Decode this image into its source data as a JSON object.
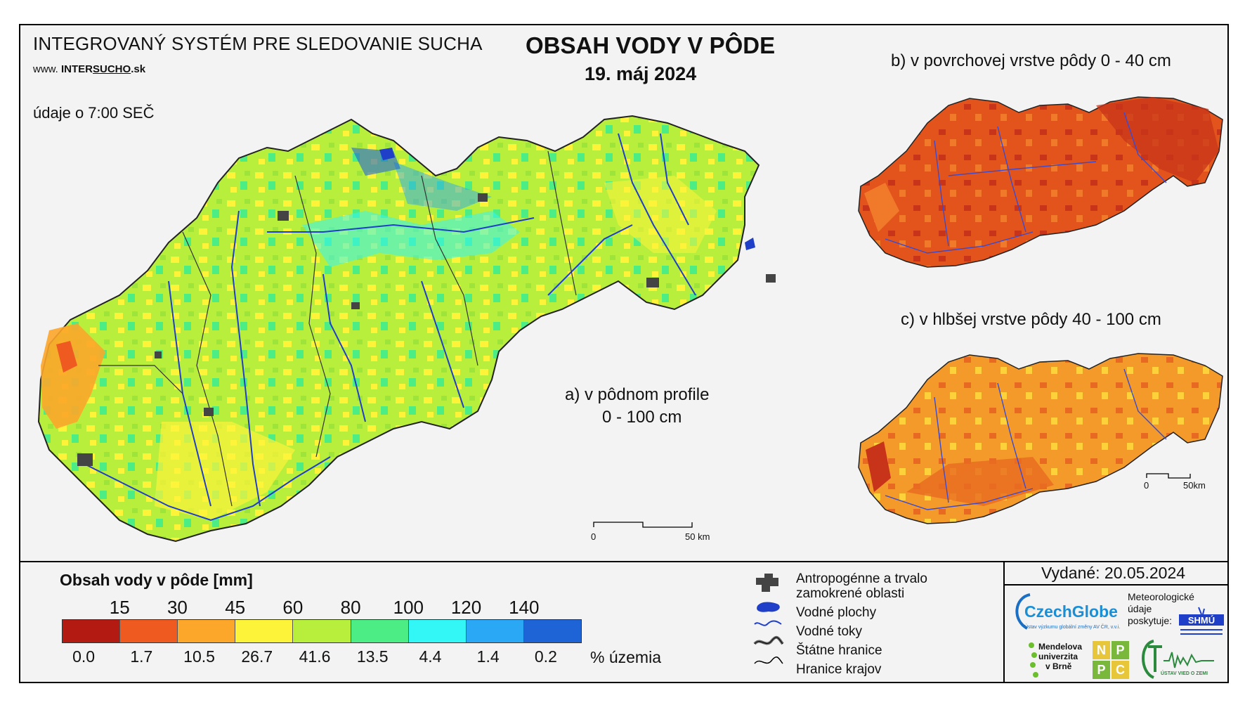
{
  "header": {
    "system_title": "INTEGROVANÝ SYSTÉM PRE SLEDOVANIE SUCHA",
    "website_prefix": "www.",
    "website_brand_a": "INTER",
    "website_brand_b": "SUCHO",
    "website_suffix": ".sk",
    "observation_time": "údaje o 7:00 SEČ",
    "main_title": "OBSAH VODY V PÔDE",
    "date": "19. máj 2024"
  },
  "maps": {
    "a_label_line1": "a) v pôdnom profile",
    "a_label_line2": "0 - 100 cm",
    "b_label": "b) v povrchovej vrstve pôdy 0 - 40 cm",
    "c_label": "c) v hlbšej vrstve pôdy 40 - 100 cm",
    "scale_main": {
      "start": "0",
      "end": "50 km"
    },
    "scale_small": {
      "start": "0",
      "end": "50km"
    }
  },
  "legend": {
    "title": "Obsah vody v pôde  [mm]",
    "thresholds": [
      "15",
      "30",
      "45",
      "60",
      "80",
      "100",
      "120",
      "140"
    ],
    "colors": [
      "#b21a12",
      "#ee5a1f",
      "#fca62a",
      "#fdf43a",
      "#b8ef3c",
      "#4ded86",
      "#33f6f6",
      "#2aa8f5",
      "#1f64d6"
    ],
    "percentages": [
      "0.0",
      "1.7",
      "10.5",
      "26.7",
      "41.6",
      "13.5",
      "4.4",
      "1.4",
      "0.2"
    ],
    "percent_unit": "% územia"
  },
  "symbols": {
    "anthropogenic_line1": "Antropogénne a trvalo",
    "anthropogenic_line2": "zamokrené oblasti",
    "water_bodies": "Vodné plochy",
    "streams": "Vodné toky",
    "state_border": "Štátne hranice",
    "region_border": "Hranice krajov"
  },
  "footer": {
    "issued": "Vydané: 20.05.2024",
    "czechglobe": "CzechGlobe",
    "czechglobe_sub": "Ústav výzkumu globální změny AV ČR, v.v.i.",
    "meteo_line1": "Meteorologické",
    "meteo_line2": "údaje",
    "meteo_line3": "poskytuje:",
    "shmu": "SHMÚ",
    "mendel_line1": "Mendelova",
    "mendel_line2": "univerzita",
    "mendel_line3": "v Brně",
    "nppc": [
      "N",
      "P",
      "P",
      "C"
    ],
    "uvz": "ÚSTAV VIED O ZEMI"
  }
}
